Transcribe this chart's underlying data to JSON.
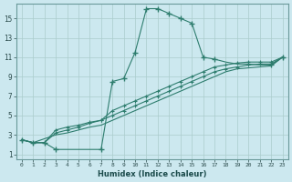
{
  "xlabel": "Humidex (Indice chaleur)",
  "bg_color": "#cce8ef",
  "grid_color": "#aacccc",
  "line_color": "#2e7d6e",
  "xlim": [
    -0.5,
    23.5
  ],
  "ylim": [
    0.5,
    16.5
  ],
  "xticks": [
    0,
    1,
    2,
    3,
    4,
    5,
    6,
    7,
    8,
    9,
    10,
    11,
    12,
    13,
    14,
    15,
    16,
    17,
    18,
    19,
    20,
    21,
    22,
    23
  ],
  "yticks": [
    1,
    3,
    5,
    7,
    9,
    11,
    13,
    15
  ],
  "line1_x": [
    0,
    1,
    2,
    3,
    4,
    5,
    6,
    7,
    8,
    9,
    10,
    11,
    12,
    13,
    14,
    15,
    16,
    17,
    18,
    19,
    20,
    21,
    22,
    23
  ],
  "line1_y": [
    2.5,
    2.2,
    2.2,
    1.5,
    1.5,
    1.5,
    1.5,
    1.5,
    8.5,
    8.8,
    11.5,
    16.0,
    16.0,
    15.5,
    15.0,
    14.5,
    11.0,
    10.8,
    10.5,
    10.3,
    10.3,
    10.2,
    10.2,
    11.0
  ],
  "line2_x": [
    0,
    1,
    2,
    3,
    4,
    5,
    6,
    7,
    8,
    9,
    10,
    11,
    12,
    13,
    14,
    15,
    16,
    17,
    18,
    19,
    20,
    21,
    22,
    23
  ],
  "line2_y": [
    2.5,
    2.2,
    2.2,
    3.2,
    3.5,
    3.8,
    4.2,
    4.5,
    5.5,
    6.0,
    6.5,
    7.0,
    7.5,
    8.0,
    8.5,
    9.0,
    9.5,
    10.0,
    10.2,
    10.4,
    10.5,
    10.5,
    10.5,
    11.0
  ],
  "line3_x": [
    0,
    1,
    2,
    3,
    4,
    5,
    6,
    7,
    8,
    9,
    10,
    11,
    12,
    13,
    14,
    15,
    16,
    17,
    18,
    19,
    20,
    21,
    22,
    23
  ],
  "line3_y": [
    2.5,
    2.2,
    2.2,
    3.5,
    3.8,
    4.0,
    4.3,
    4.5,
    5.0,
    5.5,
    6.0,
    6.5,
    7.0,
    7.5,
    8.0,
    8.5,
    9.0,
    9.5,
    9.8,
    10.0,
    10.2,
    10.3,
    10.3,
    11.0
  ],
  "line4_x": [
    0,
    1,
    3,
    4,
    5,
    6,
    7,
    8,
    9,
    10,
    11,
    12,
    13,
    14,
    15,
    16,
    17,
    18,
    19,
    20,
    21,
    22,
    23
  ],
  "line4_y": [
    2.5,
    2.2,
    3.0,
    3.2,
    3.5,
    3.8,
    4.0,
    4.5,
    5.0,
    5.5,
    6.0,
    6.5,
    7.0,
    7.5,
    8.0,
    8.5,
    9.0,
    9.5,
    9.8,
    9.9,
    10.0,
    10.1,
    11.0
  ],
  "marker_line1_x": [
    0,
    1,
    2,
    3,
    7,
    8,
    9,
    10,
    11,
    12,
    13,
    14,
    15,
    16,
    17,
    22,
    23
  ],
  "marker_line1_y": [
    2.5,
    2.2,
    2.2,
    1.5,
    1.5,
    8.5,
    8.8,
    11.5,
    16.0,
    16.0,
    15.5,
    15.0,
    14.5,
    11.0,
    10.8,
    10.2,
    11.0
  ],
  "marker_line2_x": [
    0,
    1,
    2,
    3,
    4,
    5,
    6,
    7,
    8,
    9,
    10,
    11,
    12,
    13,
    14,
    15,
    16,
    17,
    18,
    19,
    20,
    21,
    22,
    23
  ],
  "marker_line2_y": [
    2.5,
    2.2,
    2.2,
    3.2,
    3.5,
    3.8,
    4.2,
    4.5,
    5.5,
    6.0,
    6.5,
    7.0,
    7.5,
    8.0,
    8.5,
    9.0,
    9.5,
    10.0,
    10.2,
    10.4,
    10.5,
    10.5,
    10.5,
    11.0
  ],
  "marker_line3_x": [
    0,
    1,
    2,
    3,
    4,
    5,
    6,
    7,
    8,
    9,
    10,
    11,
    12,
    13,
    14,
    15,
    16,
    17,
    18,
    19,
    20,
    21,
    22,
    23
  ],
  "marker_line3_y": [
    2.5,
    2.2,
    2.2,
    3.5,
    3.8,
    4.0,
    4.3,
    4.5,
    5.0,
    5.5,
    6.0,
    6.5,
    7.0,
    7.5,
    8.0,
    8.5,
    9.0,
    9.5,
    9.8,
    10.0,
    10.2,
    10.3,
    10.3,
    11.0
  ]
}
